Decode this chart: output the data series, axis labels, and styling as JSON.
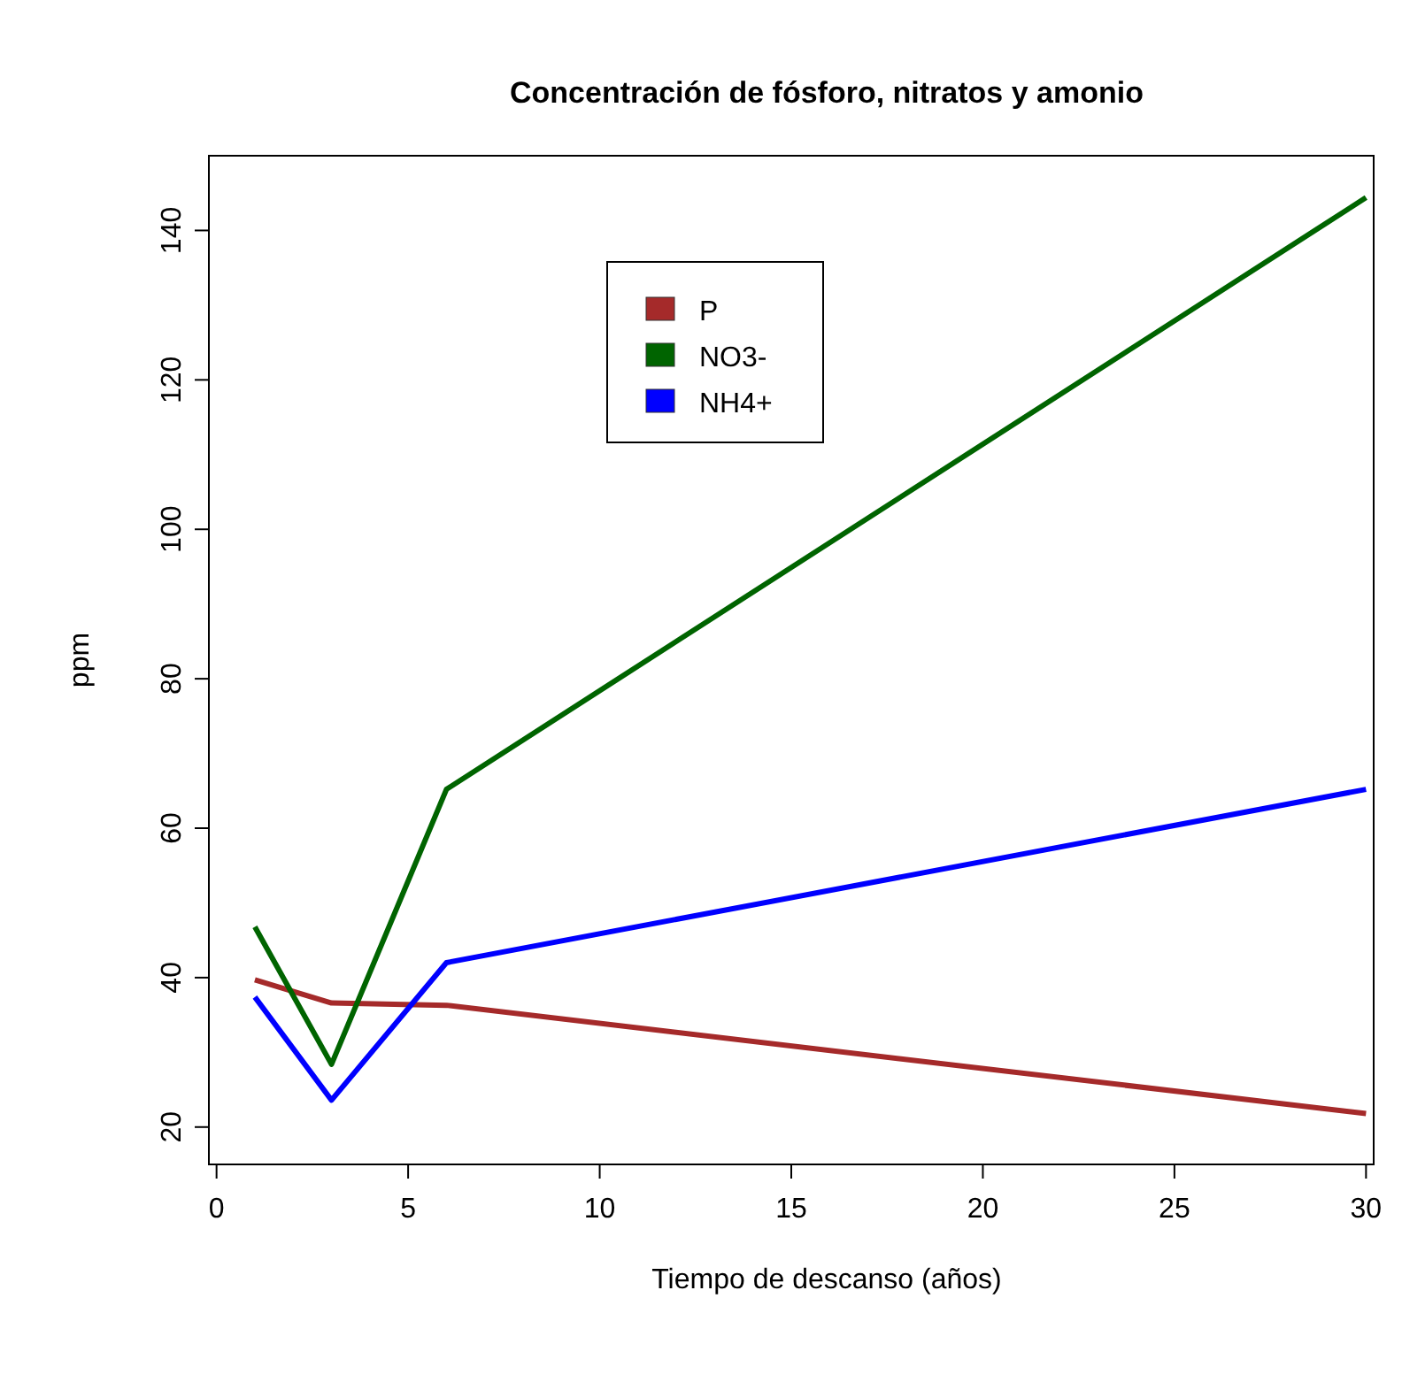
{
  "chart_data": {
    "type": "line",
    "title": "Concentración de fósforo, nitratos y amonio",
    "xlabel": "Tiempo de descanso (años)",
    "ylabel": "ppm",
    "x": [
      1,
      3,
      6,
      30
    ],
    "series": [
      {
        "name": "P",
        "color": "#a52a2a",
        "values": [
          39.7,
          36.6,
          36.3,
          21.8
        ]
      },
      {
        "name": "NO3-",
        "color": "#006400",
        "values": [
          46.8,
          28.4,
          65.2,
          144.4
        ]
      },
      {
        "name": "NH4+",
        "color": "#0000ff",
        "values": [
          37.4,
          23.6,
          42.0,
          65.2
        ]
      }
    ],
    "xlim": [
      -0.2,
      30.2
    ],
    "xticks": [
      0,
      5,
      10,
      15,
      20,
      25,
      30
    ],
    "ylim": [
      15,
      150
    ],
    "yticks": [
      20,
      40,
      60,
      80,
      100,
      120,
      140
    ],
    "legend": "top",
    "grid": false,
    "marker": "none",
    "line_style": "solid"
  }
}
